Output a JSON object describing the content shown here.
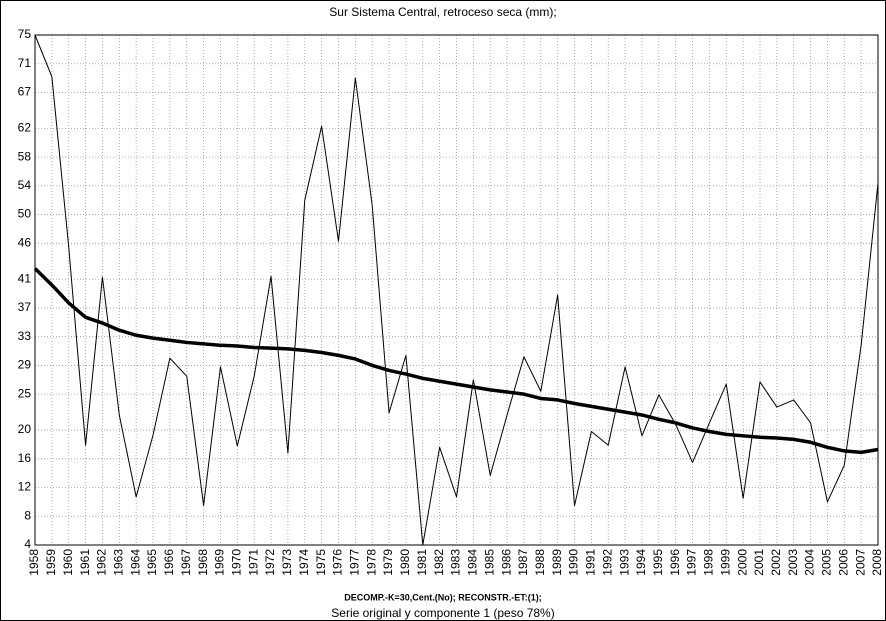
{
  "chart_data": {
    "type": "line",
    "title": "Sur Sistema Central, retroceso seca (mm);",
    "notes": [
      "DECOMP.-K=30,Cent.(No);    RECONSTR.-ET:(1);",
      "Serie original y componente 1 (peso 78%)"
    ],
    "categories": [
      "1958",
      "1959",
      "1960",
      "1961",
      "1962",
      "1963",
      "1964",
      "1965",
      "1966",
      "1967",
      "1968",
      "1969",
      "1970",
      "1971",
      "1972",
      "1973",
      "1974",
      "1975",
      "1976",
      "1977",
      "1978",
      "1979",
      "1980",
      "1981",
      "1982",
      "1983",
      "1984",
      "1985",
      "1986",
      "1987",
      "1988",
      "1989",
      "1990",
      "1991",
      "1992",
      "1993",
      "1994",
      "1995",
      "1996",
      "1997",
      "1998",
      "1999",
      "2000",
      "2001",
      "2002",
      "2003",
      "2004",
      "2005",
      "2006",
      "2007",
      "2008"
    ],
    "series": [
      {
        "color": "#000000",
        "line_width": 1,
        "values": [
          75,
          69.2,
          45.5,
          17.9,
          41.3,
          22.1,
          10.7,
          19.3,
          30,
          27.5,
          9.5,
          28.8,
          17.8,
          27.5,
          41.4,
          16.8,
          52,
          62.3,
          46.3,
          69,
          51.3,
          22.4,
          30.4,
          4,
          17.6,
          10.7,
          27,
          13.7,
          22.1,
          30.2,
          25.4,
          38.8,
          9.5,
          19.8,
          17.9,
          28.8,
          19.2,
          24.9,
          20.8,
          15.5,
          21,
          26.4,
          10.5,
          26.7,
          23.2,
          24.2,
          21,
          10,
          15.1,
          31.8,
          54.4
        ]
      },
      {
        "color": "#000000",
        "line_width": 3.5,
        "values": [
          42.5,
          40.2,
          37.7,
          35.7,
          34.9,
          33.9,
          33.2,
          32.8,
          32.5,
          32.2,
          32,
          31.8,
          31.7,
          31.5,
          31.4,
          31.3,
          31.1,
          30.8,
          30.4,
          29.9,
          29,
          28.3,
          27.8,
          27.2,
          26.8,
          26.4,
          26,
          25.6,
          25.3,
          25,
          24.4,
          24.2,
          23.7,
          23.3,
          22.9,
          22.5,
          22.1,
          21.5,
          21,
          20.3,
          19.8,
          19.4,
          19.2,
          19,
          18.9,
          18.7,
          18.3,
          17.6,
          17.1,
          16.9,
          17.3
        ]
      }
    ],
    "ylim": [
      4,
      75
    ],
    "yticks": [
      4,
      8,
      12,
      16,
      20,
      25,
      29,
      33,
      37,
      41,
      46,
      50,
      54,
      58,
      62,
      67,
      71,
      75
    ],
    "grid": true
  }
}
